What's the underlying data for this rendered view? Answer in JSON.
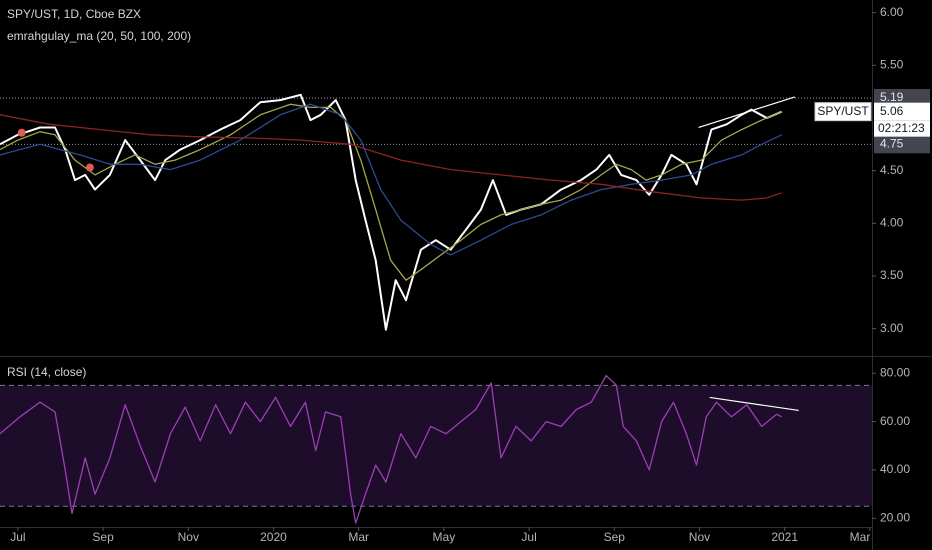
{
  "chart_data": [
    {
      "type": "line",
      "title": "SPY/UST, 1D, Cboe BZX",
      "subtitle": "emrahgulay_ma (20, 50, 100, 200)",
      "xlim": [
        -0.42,
        20.05
      ],
      "ylim": [
        2.75,
        6.12
      ],
      "yticks": [
        {
          "value": 3,
          "label": "3.00"
        },
        {
          "value": 3.5,
          "label": "3.50"
        },
        {
          "value": 4,
          "label": "4.00"
        },
        {
          "value": 4.5,
          "label": "4.50"
        },
        {
          "value": 5.5,
          "label": "5.50"
        },
        {
          "value": 6,
          "label": "6.00"
        }
      ],
      "series": [
        {
          "name": "SPY/UST",
          "color": "#ffffff",
          "x": [
            -0.42,
            0,
            0.52,
            0.87,
            1.11,
            1.34,
            1.58,
            1.81,
            2.16,
            2.52,
            2.87,
            3.22,
            3.46,
            3.81,
            4.28,
            4.75,
            5.22,
            5.69,
            6.16,
            6.64,
            6.87,
            7.11,
            7.46,
            7.69,
            7.93,
            8.16,
            8.4,
            8.64,
            8.87,
            9.11,
            9.46,
            9.81,
            10.16,
            10.52,
            10.87,
            11.15,
            11.46,
            11.81,
            12.28,
            12.75,
            13.22,
            13.58,
            13.88,
            14.16,
            14.52,
            14.82,
            15.11,
            15.34,
            15.69,
            15.93,
            16.28,
            16.64,
            16.99,
            17.22,
            17.58,
            17.93
          ],
          "values": [
            4.75,
            4.84,
            4.91,
            4.91,
            4.7,
            4.41,
            4.46,
            4.32,
            4.46,
            4.79,
            4.6,
            4.41,
            4.6,
            4.7,
            4.79,
            4.89,
            4.98,
            5.15,
            5.17,
            5.22,
            4.98,
            5.03,
            5.17,
            4.98,
            4.41,
            4.03,
            3.65,
            2.99,
            3.46,
            3.27,
            3.75,
            3.84,
            3.75,
            3.94,
            4.13,
            4.41,
            4.08,
            4.13,
            4.18,
            4.32,
            4.41,
            4.51,
            4.65,
            4.46,
            4.41,
            4.27,
            4.46,
            4.65,
            4.56,
            4.37,
            4.89,
            4.94,
            5.03,
            5.08,
            5.0,
            5.06
          ]
        },
        {
          "color": "#a7a64a",
          "x": [
            -0.42,
            0,
            0.52,
            0.87,
            1.34,
            1.81,
            2.28,
            2.75,
            3.22,
            3.69,
            4.28,
            4.99,
            5.69,
            6.4,
            6.87,
            7.34,
            7.69,
            8.05,
            8.4,
            8.75,
            9.11,
            9.46,
            9.93,
            10.4,
            10.87,
            11.34,
            11.81,
            12.28,
            12.75,
            13.22,
            13.69,
            14.05,
            14.4,
            14.75,
            15.11,
            15.58,
            16.05,
            16.52,
            16.99,
            17.46,
            17.93
          ],
          "values": [
            4.7,
            4.79,
            4.87,
            4.84,
            4.6,
            4.46,
            4.56,
            4.65,
            4.56,
            4.6,
            4.7,
            4.84,
            5.03,
            5.13,
            5.1,
            5.1,
            4.98,
            4.6,
            4.13,
            3.65,
            3.46,
            3.56,
            3.7,
            3.84,
            3.99,
            4.08,
            4.13,
            4.18,
            4.22,
            4.32,
            4.46,
            4.56,
            4.51,
            4.41,
            4.46,
            4.56,
            4.6,
            4.79,
            4.89,
            4.98,
            5.06
          ]
        },
        {
          "color": "#2e4a94",
          "x": [
            -0.42,
            0.52,
            1.46,
            2.16,
            2.87,
            3.58,
            4.28,
            5.22,
            6.16,
            6.87,
            7.58,
            8.05,
            8.52,
            8.99,
            9.69,
            10.16,
            10.87,
            11.58,
            12.28,
            12.99,
            13.69,
            14.4,
            15.11,
            15.81,
            16.28,
            16.99,
            17.46,
            17.93
          ],
          "values": [
            4.65,
            4.75,
            4.65,
            4.56,
            4.56,
            4.51,
            4.6,
            4.79,
            5.03,
            5.13,
            5.03,
            4.79,
            4.32,
            4.03,
            3.8,
            3.7,
            3.84,
            3.99,
            4.08,
            4.22,
            4.32,
            4.37,
            4.41,
            4.46,
            4.56,
            4.65,
            4.75,
            4.84
          ]
        },
        {
          "color": "#8c2323",
          "x": [
            -0.42,
            0.75,
            1.93,
            3.11,
            4.28,
            5.46,
            6.64,
            7.81,
            8.99,
            10.16,
            11.34,
            12.52,
            13.69,
            14.87,
            16.05,
            16.99,
            17.58,
            17.93
          ],
          "values": [
            5.03,
            4.94,
            4.89,
            4.84,
            4.82,
            4.81,
            4.79,
            4.75,
            4.6,
            4.51,
            4.46,
            4.41,
            4.37,
            4.3,
            4.24,
            4.22,
            4.24,
            4.29
          ]
        }
      ],
      "markers": {
        "color": "#e05a5a",
        "x": [
          0.09,
          1.69
        ],
        "values": [
          4.86,
          4.53
        ]
      },
      "trendlines": [
        {
          "x": [
            15.98,
            18.24
          ],
          "values": [
            4.91,
            5.2
          ]
        }
      ],
      "price_lines": [
        5.19,
        4.75
      ],
      "last_value": 5.06,
      "countdown": "02:21:23"
    },
    {
      "type": "line",
      "title": "RSI (14, close)",
      "xlim": [
        -0.42,
        20.05
      ],
      "ylim": [
        16.4,
        86.3
      ],
      "yticks": [
        {
          "value": 20,
          "label": "20.00"
        },
        {
          "value": 40,
          "label": "40.00"
        },
        {
          "value": 60,
          "label": "60.00"
        },
        {
          "value": 80,
          "label": "80.00"
        }
      ],
      "xticks": [
        {
          "value": 0,
          "label": "Jul"
        },
        {
          "value": 2,
          "label": "Sep"
        },
        {
          "value": 4,
          "label": "Nov"
        },
        {
          "value": 6,
          "label": "2020"
        },
        {
          "value": 8,
          "label": "Mar"
        },
        {
          "value": 10,
          "label": "May"
        },
        {
          "value": 12,
          "label": "Jul"
        },
        {
          "value": 14,
          "label": "Sep"
        },
        {
          "value": 16,
          "label": "Nov"
        },
        {
          "value": 18,
          "label": "2021"
        },
        {
          "value": 20,
          "label": "Mar"
        }
      ],
      "levels": [
        75,
        25
      ],
      "series": [
        {
          "color": "#9b3fb5",
          "x": [
            -0.42,
            0.05,
            0.52,
            0.87,
            1.11,
            1.27,
            1.58,
            1.81,
            2.16,
            2.52,
            2.87,
            3.22,
            3.58,
            3.93,
            4.28,
            4.64,
            4.99,
            5.34,
            5.69,
            6.05,
            6.4,
            6.75,
            6.99,
            7.22,
            7.58,
            7.81,
            7.93,
            8.16,
            8.4,
            8.64,
            8.99,
            9.34,
            9.69,
            10.05,
            10.4,
            10.75,
            11.11,
            11.34,
            11.69,
            12.05,
            12.4,
            12.75,
            13.11,
            13.46,
            13.81,
            14.05,
            14.21,
            14.52,
            14.82,
            15.11,
            15.39,
            15.69,
            15.93,
            16.16,
            16.4,
            16.75,
            17.11,
            17.46,
            17.81,
            17.93
          ],
          "values": [
            55,
            62,
            68,
            64,
            40,
            22,
            45,
            30,
            45,
            67,
            50,
            35,
            55,
            66,
            52,
            67,
            55,
            68,
            60,
            70,
            58,
            68,
            48,
            64,
            62,
            30,
            18,
            30,
            42,
            35,
            55,
            45,
            58,
            55,
            60,
            65,
            76,
            45,
            58,
            52,
            60,
            58,
            65,
            68,
            79,
            75,
            58,
            52,
            40,
            60,
            68,
            55,
            42,
            62,
            68,
            62,
            67,
            58,
            63,
            62
          ]
        }
      ],
      "trendlines": [
        {
          "x": [
            16.24,
            18.33
          ],
          "values": [
            70,
            64.6
          ]
        }
      ]
    }
  ]
}
